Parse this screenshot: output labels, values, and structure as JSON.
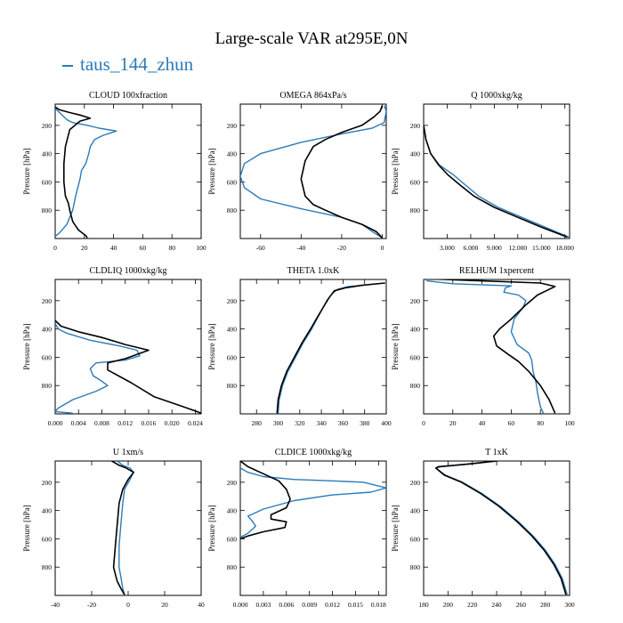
{
  "title": "Large-scale VAR at295E,0N",
  "legend": {
    "label": "taus_144_zhun",
    "color": "#2b7bb9"
  },
  "colors": {
    "series_1": "#2b7bb9",
    "series_2": "#000000"
  },
  "chart_data": [
    {
      "type": "line",
      "title": "CLOUD  100xfraction",
      "ylabel": "Pressure [hPa]",
      "xlim": [
        0,
        100
      ],
      "xticks": [
        0,
        20,
        40,
        60,
        80,
        100
      ],
      "ylim": [
        1000,
        50
      ],
      "yticks": [
        200,
        400,
        600,
        800
      ],
      "series": [
        {
          "color": "#2b7bb9",
          "x": [
            0,
            4,
            8,
            12,
            22,
            30,
            42,
            33,
            27,
            24,
            23,
            21,
            18,
            17,
            16,
            14,
            12,
            8,
            3,
            0
          ],
          "y": [
            80,
            120,
            160,
            180,
            200,
            220,
            240,
            270,
            300,
            350,
            400,
            470,
            520,
            580,
            620,
            700,
            800,
            900,
            960,
            985
          ]
        },
        {
          "color": "#000000",
          "x": [
            0,
            3,
            10,
            18,
            24,
            17,
            10,
            7,
            6,
            6,
            7,
            9,
            10,
            12,
            16,
            21,
            22
          ],
          "y": [
            70,
            90,
            110,
            130,
            150,
            170,
            230,
            350,
            470,
            600,
            700,
            750,
            800,
            880,
            940,
            980,
            995
          ]
        }
      ]
    },
    {
      "type": "line",
      "title": "OMEGA  864xPa/s",
      "ylabel": "Pressure [hPa]",
      "xlim": [
        -70,
        2
      ],
      "xticks": [
        -60,
        -40,
        -20,
        0
      ],
      "xticklabels": [
        "-60",
        "-40",
        "-20",
        "0"
      ],
      "ylim": [
        1000,
        50
      ],
      "yticks": [
        200,
        400,
        600,
        800
      ],
      "series": [
        {
          "color": "#2b7bb9",
          "x": [
            1,
            2,
            1,
            -5,
            -20,
            -40,
            -60,
            -68,
            -70,
            -68,
            -60,
            -40,
            -20,
            -10,
            -5,
            0
          ],
          "y": [
            60,
            100,
            180,
            220,
            260,
            320,
            400,
            470,
            560,
            640,
            720,
            790,
            850,
            900,
            950,
            995
          ]
        },
        {
          "color": "#000000",
          "x": [
            0,
            -1,
            -4,
            -10,
            -20,
            -28,
            -34,
            -38,
            -40,
            -38,
            -34,
            -28,
            -20,
            -10,
            -3,
            0
          ],
          "y": [
            60,
            100,
            140,
            200,
            250,
            300,
            350,
            450,
            580,
            700,
            760,
            800,
            850,
            900,
            950,
            995
          ]
        }
      ]
    },
    {
      "type": "line",
      "title": "Q  1000xkg/kg",
      "ylabel": "Pressure [hPa]",
      "xlim": [
        0,
        18600
      ],
      "xticks": [
        3000,
        6000,
        9000,
        12000,
        15000,
        18000
      ],
      "xticklabels": [
        "3.000",
        "6.000",
        "9.000",
        "12.000",
        "15.000",
        "18.000"
      ],
      "ylim": [
        1000,
        50
      ],
      "yticks": [
        200,
        400,
        600,
        800
      ],
      "series": [
        {
          "color": "#2b7bb9",
          "x": [
            0,
            300,
            900,
            2000,
            3800,
            5300,
            7000,
            9500,
            12500,
            15500,
            18500
          ],
          "y": [
            200,
            300,
            400,
            480,
            550,
            620,
            700,
            780,
            850,
            920,
            990
          ]
        },
        {
          "color": "#000000",
          "x": [
            0,
            300,
            900,
            1900,
            3100,
            4600,
            6400,
            9000,
            12000,
            15000,
            18300
          ],
          "y": [
            200,
            300,
            400,
            480,
            550,
            620,
            700,
            780,
            850,
            920,
            990
          ]
        }
      ]
    },
    {
      "type": "line",
      "title": "CLDLIQ  1000xkg/kg",
      "ylabel": "Pressure [hPa]",
      "xlim": [
        0,
        0.025
      ],
      "xticks": [
        0,
        0.004,
        0.008,
        0.012,
        0.016,
        0.02,
        0.024
      ],
      "xticklabels": [
        "0.000",
        "0.004",
        "0.008",
        "0.012",
        "0.016",
        "0.020",
        "0.024"
      ],
      "ylim": [
        1000,
        50
      ],
      "yticks": [
        200,
        400,
        600,
        800
      ],
      "series": [
        {
          "color": "#2b7bb9",
          "x": [
            0,
            0.0005,
            0.002,
            0.006,
            0.011,
            0.014,
            0.0145,
            0.012,
            0.007,
            0.006,
            0.0065,
            0.008,
            0.009,
            0.007,
            0.003,
            0.0005,
            0,
            0.003
          ],
          "y": [
            360,
            400,
            430,
            480,
            520,
            550,
            590,
            620,
            640,
            680,
            730,
            770,
            800,
            840,
            900,
            960,
            985,
            995
          ]
        },
        {
          "color": "#000000",
          "x": [
            0,
            0.001,
            0.004,
            0.008,
            0.012,
            0.016,
            0.012,
            0.009,
            0.009,
            0.013,
            0.017,
            0.022,
            0.024,
            0.025
          ],
          "y": [
            340,
            380,
            420,
            460,
            510,
            550,
            610,
            640,
            690,
            780,
            880,
            950,
            980,
            995
          ]
        }
      ]
    },
    {
      "type": "line",
      "title": "THETA  1.0xK",
      "ylabel": "Pressure [hPa]",
      "xlim": [
        265,
        400
      ],
      "xticks": [
        280,
        300,
        320,
        340,
        360,
        380,
        400
      ],
      "ylim": [
        1000,
        50
      ],
      "yticks": [
        200,
        400,
        600,
        800
      ],
      "series": [
        {
          "color": "#2b7bb9",
          "x": [
            300,
            301,
            304,
            309,
            316,
            323,
            331,
            338,
            345,
            350,
            355,
            365,
            380
          ],
          "y": [
            995,
            900,
            800,
            700,
            600,
            500,
            400,
            300,
            200,
            150,
            120,
            100,
            90
          ]
        },
        {
          "color": "#000000",
          "x": [
            299,
            300,
            303,
            308,
            315,
            322,
            330,
            336,
            343,
            347,
            352,
            362,
            378,
            399
          ],
          "y": [
            995,
            900,
            800,
            700,
            600,
            500,
            400,
            320,
            230,
            180,
            130,
            110,
            90,
            75
          ]
        }
      ]
    },
    {
      "type": "line",
      "title": "RELHUM  1xpercent",
      "ylabel": "Pressure [hPa]",
      "xlim": [
        0,
        100
      ],
      "xticks": [
        0,
        20,
        40,
        60,
        80,
        100
      ],
      "ylim": [
        1000,
        50
      ],
      "yticks": [
        200,
        400,
        600,
        800
      ],
      "series": [
        {
          "color": "#2b7bb9",
          "x": [
            2,
            20,
            60,
            56,
            55,
            65,
            70,
            68,
            62,
            60,
            64,
            72,
            74,
            75,
            77,
            78,
            80,
            82
          ],
          "y": [
            60,
            80,
            95,
            110,
            140,
            160,
            200,
            250,
            330,
            420,
            510,
            570,
            620,
            700,
            780,
            850,
            950,
            995
          ]
        },
        {
          "color": "#000000",
          "x": [
            2,
            40,
            80,
            90,
            84,
            78,
            70,
            60,
            52,
            48,
            50,
            58,
            65,
            72,
            80,
            86,
            90
          ],
          "y": [
            45,
            60,
            75,
            100,
            130,
            160,
            230,
            330,
            400,
            450,
            520,
            580,
            630,
            700,
            800,
            900,
            995
          ]
        }
      ]
    },
    {
      "type": "line",
      "title": "U  1xm/s",
      "ylabel": "Pressure [hPa]",
      "xlim": [
        -40,
        40
      ],
      "xticks": [
        -40,
        -20,
        0,
        20,
        40
      ],
      "ylim": [
        1000,
        50
      ],
      "yticks": [
        200,
        400,
        600,
        800
      ],
      "series": [
        {
          "color": "#2b7bb9",
          "x": [
            -6,
            -3,
            1,
            3,
            1,
            -2,
            -3,
            -4,
            -5,
            -5,
            -4,
            -3,
            -2
          ],
          "y": [
            50,
            80,
            100,
            130,
            180,
            250,
            350,
            500,
            650,
            800,
            870,
            950,
            995
          ]
        },
        {
          "color": "#000000",
          "x": [
            -9,
            -5,
            -1,
            3,
            0,
            -3,
            -5,
            -6,
            -7,
            -8,
            -7,
            -6,
            -4,
            -2
          ],
          "y": [
            50,
            80,
            100,
            130,
            180,
            250,
            350,
            500,
            650,
            800,
            850,
            900,
            950,
            995
          ]
        }
      ]
    },
    {
      "type": "line",
      "title": "CLDICE  1000xkg/kg",
      "ylabel": "Pressure [hPa]",
      "xlim": [
        0,
        0.019
      ],
      "xticks": [
        0,
        0.003,
        0.006,
        0.009,
        0.012,
        0.015,
        0.018
      ],
      "xticklabels": [
        "0.000",
        "0.003",
        "0.006",
        "0.009",
        "0.012",
        "0.015",
        "0.018"
      ],
      "ylim": [
        1000,
        50
      ],
      "yticks": [
        200,
        400,
        600,
        800
      ],
      "series": [
        {
          "color": "#2b7bb9",
          "x": [
            0,
            0.001,
            0.003,
            0.007,
            0.012,
            0.016,
            0.019,
            0.017,
            0.012,
            0.007,
            0.003,
            0.001,
            0.0015,
            0.002,
            0.001,
            0
          ],
          "y": [
            100,
            130,
            160,
            180,
            190,
            200,
            240,
            270,
            290,
            330,
            390,
            440,
            470,
            510,
            560,
            590
          ]
        },
        {
          "color": "#000000",
          "x": [
            0,
            0.001,
            0.003,
            0.005,
            0.006,
            0.0065,
            0.006,
            0.004,
            0.004,
            0.006,
            0.0058,
            0.003,
            0.001,
            0
          ],
          "y": [
            50,
            90,
            140,
            190,
            250,
            320,
            380,
            430,
            460,
            480,
            520,
            550,
            580,
            600
          ]
        }
      ]
    },
    {
      "type": "line",
      "title": "T  1xK",
      "ylabel": "Pressure [hPa]",
      "xlim": [
        180,
        300
      ],
      "xticks": [
        180,
        200,
        220,
        240,
        260,
        280,
        300
      ],
      "ylim": [
        1000,
        50
      ],
      "yticks": [
        200,
        400,
        600,
        800
      ],
      "series": [
        {
          "color": "#2b7bb9",
          "x": [
            245,
            220,
            194,
            190,
            198,
            212,
            228,
            243,
            258,
            270,
            280,
            288,
            294,
            298
          ],
          "y": [
            45,
            70,
            90,
            100,
            150,
            200,
            280,
            370,
            480,
            580,
            680,
            780,
            880,
            995
          ]
        },
        {
          "color": "#000000",
          "x": [
            245,
            218,
            192,
            190,
            197,
            211,
            227,
            242,
            257,
            269,
            279,
            287,
            293,
            297
          ],
          "y": [
            45,
            70,
            90,
            100,
            150,
            200,
            280,
            370,
            480,
            580,
            680,
            780,
            880,
            995
          ]
        }
      ]
    }
  ]
}
